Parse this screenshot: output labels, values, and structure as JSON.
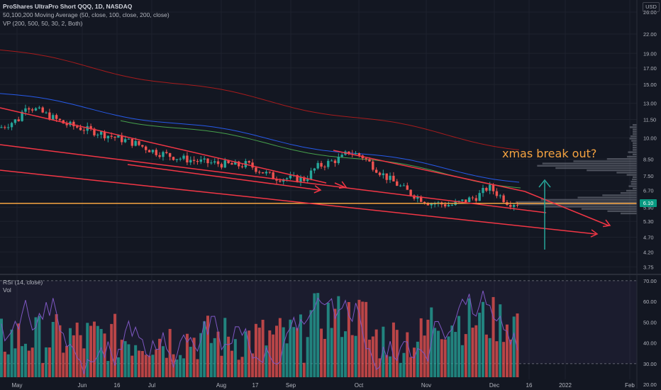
{
  "header": {
    "symbol_line": "ProShares UltraPro Short QQQ, 1D, NASDAQ",
    "ma_line": "50,100,200 Moving Average (50, close, 100, close, 200, close)",
    "vp_line": "VP (200, 500, 50, 30, 2, Both)",
    "currency": "USD"
  },
  "annotation": {
    "text": "xmas break out?"
  },
  "current_price_label": "6.10",
  "panes": {
    "rsi_label": "RSI (14, close)",
    "vol_label": "Vol"
  },
  "colors": {
    "background": "#131722",
    "up": "#26a69a",
    "down": "#ef5350",
    "trendline": "#f23645",
    "support": "#f5a340",
    "ma50": "#4caf50",
    "ma100": "#2962ff",
    "ma200": "#b71c1c",
    "rsi": "#7e57c2",
    "arrow_up": "#26a69a"
  },
  "chart_data": [
    {
      "type": "candlestick",
      "title": "ProShares UltraPro Short QQQ, 1D, NASDAQ",
      "scale": "log",
      "y_ticks": [
        26.0,
        22.0,
        19.0,
        17.0,
        15.0,
        13.0,
        11.5,
        10.0,
        8.5,
        7.5,
        6.7,
        5.9,
        5.3,
        4.7,
        4.2,
        3.75
      ],
      "ylim": [
        3.6,
        28.5
      ],
      "x_ticks": [
        "May",
        "Jun",
        "16",
        "Jul",
        "Aug",
        "17",
        "Sep",
        "Oct",
        "Nov",
        "Dec",
        "16",
        "2022",
        "Feb"
      ],
      "close_series": [
        {
          "t": "May 1",
          "v": 10.8
        },
        {
          "t": "May 10",
          "v": 11.6
        },
        {
          "t": "May 12",
          "v": 12.9
        },
        {
          "t": "May 20",
          "v": 12.1
        },
        {
          "t": "Jun 1",
          "v": 11.1
        },
        {
          "t": "Jun 16",
          "v": 10.4
        },
        {
          "t": "Jul 1",
          "v": 9.6
        },
        {
          "t": "Jul 10",
          "v": 9.0
        },
        {
          "t": "Jul 20",
          "v": 8.6
        },
        {
          "t": "Aug 1",
          "v": 8.3
        },
        {
          "t": "Aug 17",
          "v": 8.1
        },
        {
          "t": "Aug 20",
          "v": 8.2
        },
        {
          "t": "Sep 1",
          "v": 7.4
        },
        {
          "t": "Sep 15",
          "v": 7.3
        },
        {
          "t": "Sep 20",
          "v": 8.0
        },
        {
          "t": "Oct 1",
          "v": 8.6
        },
        {
          "t": "Oct 4",
          "v": 9.0
        },
        {
          "t": "Oct 10",
          "v": 8.7
        },
        {
          "t": "Oct 20",
          "v": 7.5
        },
        {
          "t": "Nov 1",
          "v": 6.6
        },
        {
          "t": "Nov 10",
          "v": 6.1
        },
        {
          "t": "Nov 20",
          "v": 6.0
        },
        {
          "t": "Dec 1",
          "v": 6.4
        },
        {
          "t": "Dec 6",
          "v": 6.9
        },
        {
          "t": "Dec 15",
          "v": 6.1
        }
      ],
      "moving_averages": [
        {
          "name": "MA 50",
          "period": 50
        },
        {
          "name": "MA 100",
          "period": 100
        },
        {
          "name": "MA 200",
          "period": 200
        }
      ],
      "support_level": 6.08,
      "current_price": 6.1
    },
    {
      "type": "line",
      "title": "RSI (14, close)",
      "y_ticks": [
        70.0,
        60.0,
        50.0,
        40.0,
        30.0,
        20.0
      ],
      "ylim": [
        18,
        72
      ],
      "levels": [
        70,
        30
      ]
    },
    {
      "type": "bar",
      "title": "Vol",
      "description_only": false
    }
  ]
}
